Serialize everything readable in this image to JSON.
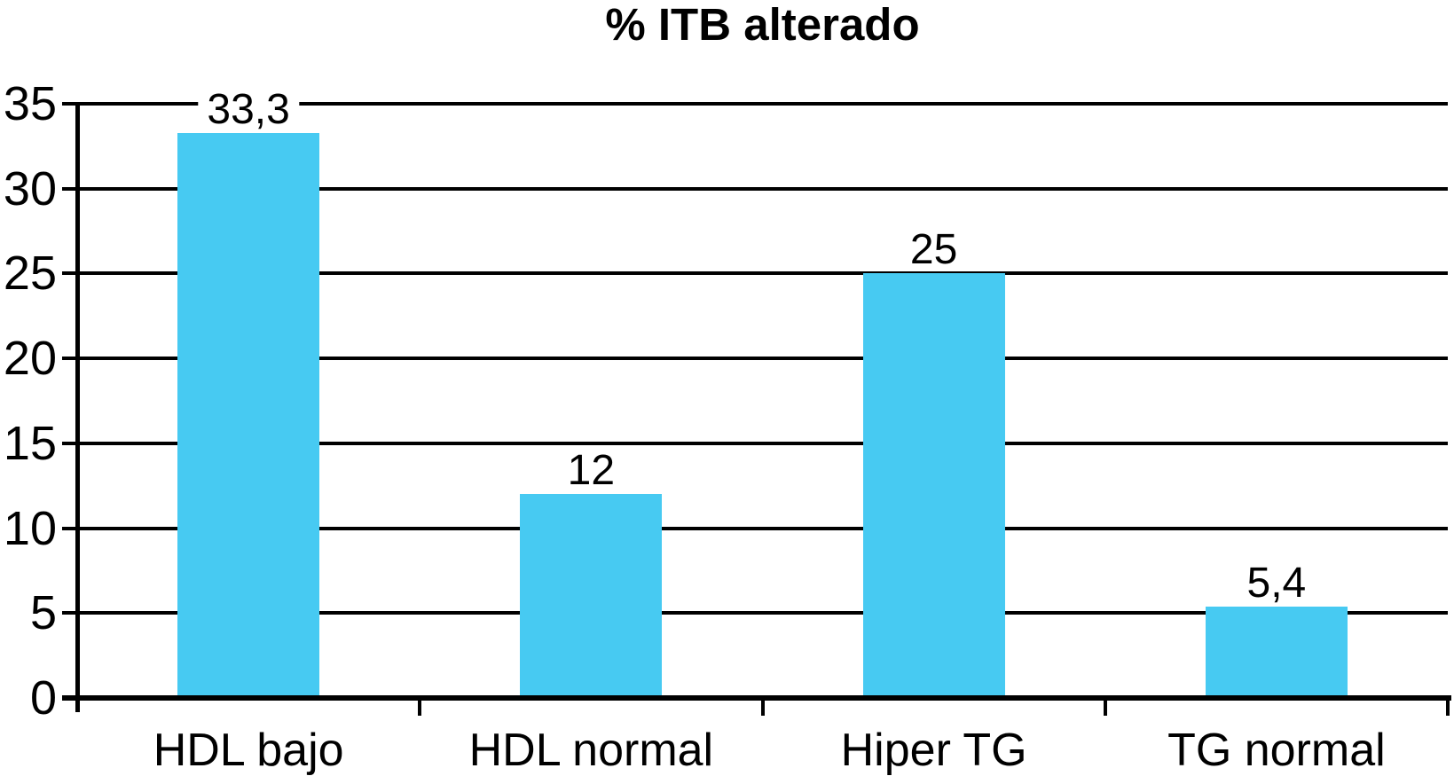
{
  "title": "% ITB alterado",
  "chart_data": {
    "type": "bar",
    "title": "% ITB alterado",
    "categories": [
      "HDL bajo",
      "HDL normal",
      "Hiper TG",
      "TG normal"
    ],
    "values": [
      33.3,
      12,
      25,
      5.4
    ],
    "value_labels": [
      "33,3",
      "12",
      "25",
      "5,4"
    ],
    "xlabel": "",
    "ylabel": "",
    "ylim": [
      0,
      35
    ],
    "yticks": [
      0,
      5,
      10,
      15,
      20,
      25,
      30,
      35
    ],
    "ytick_labels": [
      "0",
      "5",
      "10",
      "15",
      "20",
      "25",
      "30",
      "35"
    ],
    "grid": "horizontal",
    "legend_position": "none",
    "colors": {
      "bar": "#47CAF2",
      "axis": "#000000",
      "text": "#000000",
      "background": "#FFFFFF"
    }
  }
}
